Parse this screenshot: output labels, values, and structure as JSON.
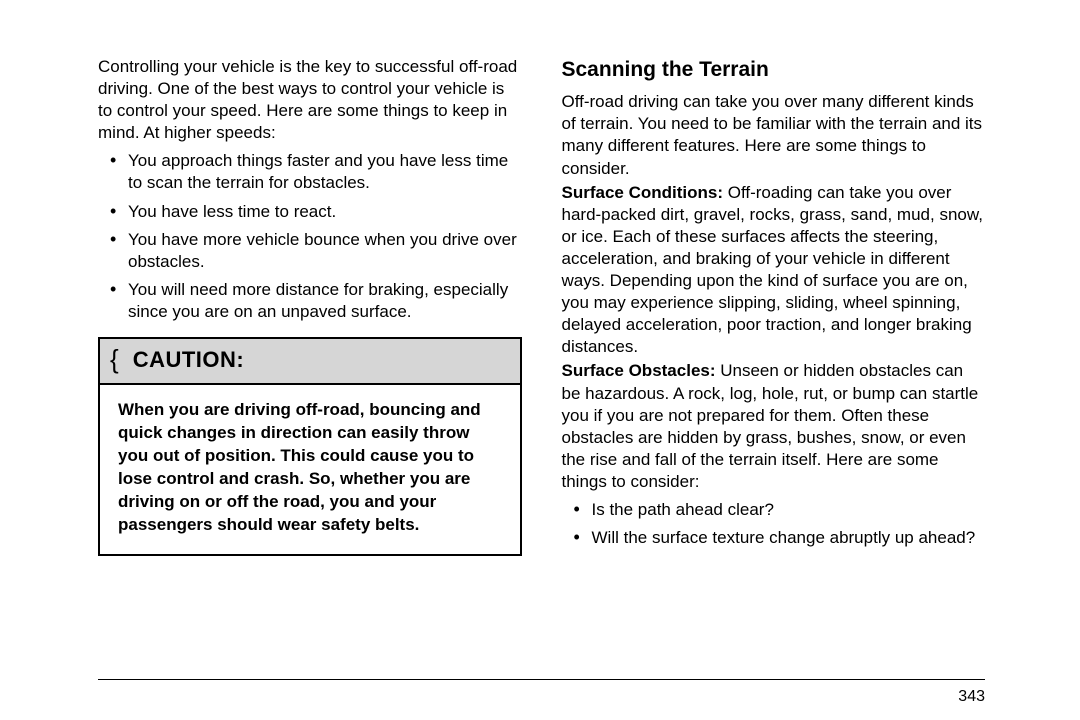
{
  "left": {
    "intro": "Controlling your vehicle is the key to successful off-road driving. One of the best ways to control your vehicle is to control your speed. Here are some things to keep in mind. At higher speeds:",
    "bullets": [
      "You approach things faster and you have less time to scan the terrain for obstacles.",
      "You have less time to react.",
      "You have more vehicle bounce when you drive over obstacles.",
      "You will need more distance for braking, especially since you are on an unpaved surface."
    ],
    "caution_brace": "{",
    "caution_title": "CAUTION:",
    "caution_body": "When you are driving off-road, bouncing and quick changes in direction can easily throw you out of position. This could cause you to lose control and crash. So, whether you are driving on or off the road, you and your passengers should wear safety belts."
  },
  "right": {
    "heading": "Scanning the Terrain",
    "intro": "Off-road driving can take you over many different kinds of terrain. You need to be familiar with the terrain and its many different features. Here are some things to consider.",
    "surface_conditions_label": "Surface Conditions:",
    "surface_conditions_text": "  Off-roading can take you over hard-packed dirt, gravel, rocks, grass, sand, mud, snow, or ice. Each of these surfaces affects the steering, acceleration, and braking of your vehicle in different ways. Depending upon the kind of surface you are on, you may experience slipping, sliding, wheel spinning, delayed acceleration, poor traction, and longer braking distances.",
    "surface_obstacles_label": "Surface Obstacles:",
    "surface_obstacles_text": "  Unseen or hidden obstacles can be hazardous. A rock, log, hole, rut, or bump can startle you if you are not prepared for them. Often these obstacles are hidden by grass, bushes, snow, or even the rise and fall of the terrain itself. Here are some things to consider:",
    "bullets": [
      "Is the path ahead clear?",
      "Will the surface texture change abruptly up ahead?"
    ]
  },
  "page_number": "343"
}
